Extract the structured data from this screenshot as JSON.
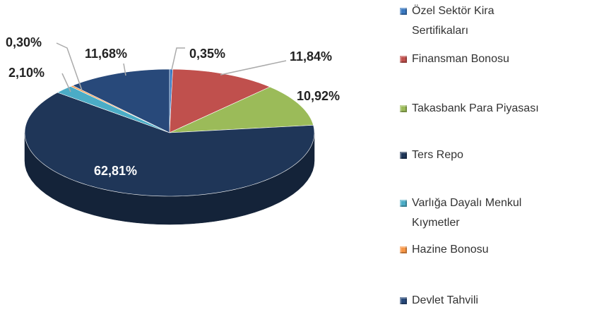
{
  "chart_data": {
    "type": "pie",
    "categories": [
      "Özel Sektör Kira Sertifikaları",
      "Finansman Bonosu",
      "Takasbank Para Piyasası",
      "Ters Repo",
      "Varlığa Dayalı Menkul Kıymetler",
      "Hazine Bonosu",
      "Devlet Tahvili"
    ],
    "values": [
      0.35,
      11.84,
      10.92,
      62.81,
      2.1,
      0.3,
      11.68
    ],
    "value_labels": [
      "0,35%",
      "11,84%",
      "10,92%",
      "62,81%",
      "2,10%",
      "0,30%",
      "11,68%"
    ],
    "colors": [
      "#3a78c0",
      "#c0504d",
      "#9bbb59",
      "#1f3658",
      "#4bacc6",
      "#f79646",
      "#28497a"
    ],
    "legend": "right"
  }
}
